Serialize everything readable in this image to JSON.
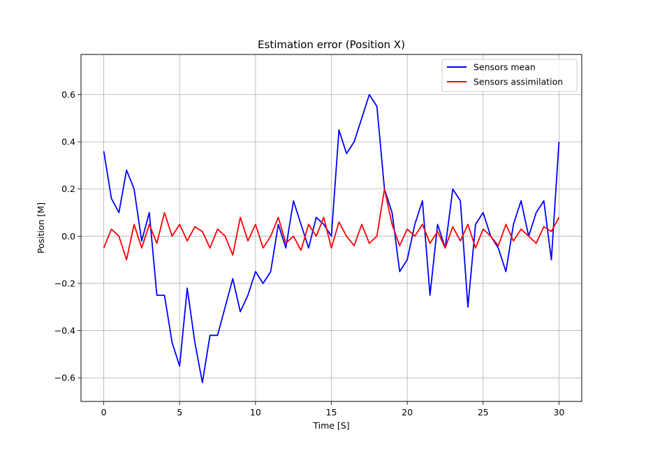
{
  "chart_data": {
    "type": "line",
    "title": "Estimation error (Position X)",
    "xlabel": "Time [S]",
    "ylabel": "Position [M]",
    "xlim": [
      -1.5,
      31.5
    ],
    "ylim": [
      -0.7,
      0.77
    ],
    "xticks": [
      0,
      5,
      10,
      15,
      20,
      25,
      30
    ],
    "xtick_labels": [
      "0",
      "5",
      "10",
      "15",
      "20",
      "25",
      "30"
    ],
    "yticks": [
      -0.6,
      -0.4,
      -0.2,
      0.0,
      0.2,
      0.4,
      0.6
    ],
    "ytick_labels": [
      "−0.6",
      "−0.4",
      "−0.2",
      "0.0",
      "0.2",
      "0.4",
      "0.6"
    ],
    "grid": true,
    "legend_position": "top-right",
    "series": [
      {
        "name": "Sensors mean",
        "color": "#0000ff",
        "x": [
          0,
          0.5,
          1.0,
          1.5,
          2.0,
          2.5,
          3.0,
          3.5,
          4.0,
          4.5,
          5.0,
          5.5,
          6.0,
          6.5,
          7.0,
          7.5,
          8.0,
          8.5,
          9.0,
          9.5,
          10.0,
          10.5,
          11.0,
          11.5,
          12.0,
          12.5,
          13.0,
          13.5,
          14.0,
          14.5,
          15.0,
          15.5,
          16.0,
          16.5,
          17.0,
          17.5,
          18.0,
          18.5,
          19.0,
          19.5,
          20.0,
          20.5,
          21.0,
          21.5,
          22.0,
          22.5,
          23.0,
          23.5,
          24.0,
          24.5,
          25.0,
          25.5,
          26.0,
          26.5,
          27.0,
          27.5,
          28.0,
          28.5,
          29.0,
          29.5,
          30.0
        ],
        "y": [
          0.36,
          0.16,
          0.1,
          0.28,
          0.2,
          -0.02,
          0.1,
          -0.25,
          -0.25,
          -0.45,
          -0.55,
          -0.22,
          -0.45,
          -0.62,
          -0.42,
          -0.42,
          -0.3,
          -0.18,
          -0.32,
          -0.25,
          -0.15,
          -0.2,
          -0.15,
          0.05,
          -0.05,
          0.15,
          0.05,
          -0.05,
          0.08,
          0.05,
          0.0,
          0.45,
          0.35,
          0.4,
          0.5,
          0.6,
          0.55,
          0.2,
          0.1,
          -0.15,
          -0.1,
          0.05,
          0.15,
          -0.25,
          0.05,
          -0.05,
          0.2,
          0.15,
          -0.3,
          0.05,
          0.1,
          0.0,
          -0.05,
          -0.15,
          0.05,
          0.15,
          0.0,
          0.1,
          0.15,
          -0.1,
          0.4
        ]
      },
      {
        "name": "Sensors assimilation",
        "color": "#ff0000",
        "x": [
          0,
          0.5,
          1.0,
          1.5,
          2.0,
          2.5,
          3.0,
          3.5,
          4.0,
          4.5,
          5.0,
          5.5,
          6.0,
          6.5,
          7.0,
          7.5,
          8.0,
          8.5,
          9.0,
          9.5,
          10.0,
          10.5,
          11.0,
          11.5,
          12.0,
          12.5,
          13.0,
          13.5,
          14.0,
          14.5,
          15.0,
          15.5,
          16.0,
          16.5,
          17.0,
          17.5,
          18.0,
          18.5,
          19.0,
          19.5,
          20.0,
          20.5,
          21.0,
          21.5,
          22.0,
          22.5,
          23.0,
          23.5,
          24.0,
          24.5,
          25.0,
          25.5,
          26.0,
          26.5,
          27.0,
          27.5,
          28.0,
          28.5,
          29.0,
          29.5,
          30.0
        ],
        "y": [
          -0.05,
          0.03,
          0.0,
          -0.1,
          0.05,
          -0.05,
          0.05,
          -0.03,
          0.1,
          0.0,
          0.05,
          -0.02,
          0.04,
          0.02,
          -0.05,
          0.03,
          0.0,
          -0.08,
          0.08,
          -0.02,
          0.05,
          -0.05,
          0.0,
          0.08,
          -0.03,
          0.0,
          -0.06,
          0.05,
          0.0,
          0.08,
          -0.05,
          0.06,
          0.0,
          -0.04,
          0.05,
          -0.03,
          0.0,
          0.2,
          0.05,
          -0.04,
          0.03,
          0.0,
          0.05,
          -0.03,
          0.02,
          -0.05,
          0.04,
          -0.02,
          0.05,
          -0.05,
          0.03,
          0.0,
          -0.04,
          0.05,
          -0.02,
          0.03,
          0.0,
          -0.03,
          0.04,
          0.02,
          0.08
        ]
      }
    ]
  }
}
